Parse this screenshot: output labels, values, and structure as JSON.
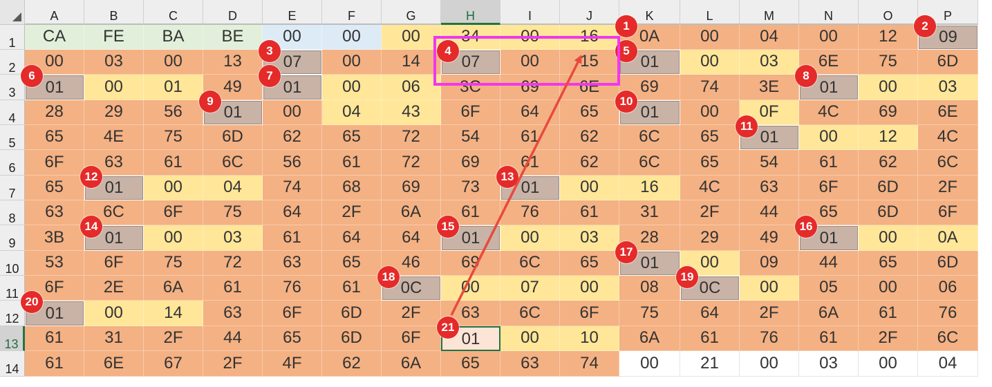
{
  "columns": [
    "A",
    "B",
    "C",
    "D",
    "E",
    "F",
    "G",
    "H",
    "I",
    "J",
    "K",
    "L",
    "M",
    "N",
    "O",
    "P"
  ],
  "rows": [
    "1",
    "2",
    "3",
    "4",
    "5",
    "6",
    "7",
    "8",
    "9",
    "10",
    "11",
    "12",
    "13",
    "14"
  ],
  "selected_column": "H",
  "selected_row": "13",
  "active_cell": "H13",
  "cells": [
    [
      "CA",
      "FE",
      "BA",
      "BE",
      "00",
      "00",
      "00",
      "34",
      "00",
      "16",
      "0A",
      "00",
      "04",
      "00",
      "12",
      "09"
    ],
    [
      "00",
      "03",
      "00",
      "13",
      "07",
      "00",
      "14",
      "07",
      "00",
      "15",
      "01",
      "00",
      "03",
      "6E",
      "75",
      "6D"
    ],
    [
      "01",
      "00",
      "01",
      "49",
      "01",
      "00",
      "06",
      "3C",
      "69",
      "6E",
      "69",
      "74",
      "3E",
      "01",
      "00",
      "03"
    ],
    [
      "28",
      "29",
      "56",
      "01",
      "00",
      "04",
      "43",
      "6F",
      "64",
      "65",
      "01",
      "00",
      "0F",
      "4C",
      "69",
      "6E"
    ],
    [
      "65",
      "4E",
      "75",
      "6D",
      "62",
      "65",
      "72",
      "54",
      "61",
      "62",
      "6C",
      "65",
      "01",
      "00",
      "12",
      "4C"
    ],
    [
      "6F",
      "63",
      "61",
      "6C",
      "56",
      "61",
      "72",
      "69",
      "61",
      "62",
      "6C",
      "65",
      "54",
      "61",
      "62",
      "6C"
    ],
    [
      "65",
      "01",
      "00",
      "04",
      "74",
      "68",
      "69",
      "73",
      "01",
      "00",
      "16",
      "4C",
      "63",
      "6F",
      "6D",
      "2F"
    ],
    [
      "63",
      "6C",
      "6F",
      "75",
      "64",
      "2F",
      "6A",
      "61",
      "76",
      "61",
      "31",
      "2F",
      "44",
      "65",
      "6D",
      "6F"
    ],
    [
      "3B",
      "01",
      "00",
      "03",
      "61",
      "64",
      "64",
      "01",
      "00",
      "03",
      "28",
      "29",
      "49",
      "01",
      "00",
      "0A"
    ],
    [
      "53",
      "6F",
      "75",
      "72",
      "63",
      "65",
      "46",
      "69",
      "6C",
      "65",
      "01",
      "00",
      "09",
      "44",
      "65",
      "6D"
    ],
    [
      "6F",
      "2E",
      "6A",
      "61",
      "76",
      "61",
      "0C",
      "00",
      "07",
      "00",
      "08",
      "0C",
      "00",
      "05",
      "00",
      "06"
    ],
    [
      "01",
      "00",
      "14",
      "63",
      "6F",
      "6D",
      "2F",
      "63",
      "6C",
      "6F",
      "75",
      "64",
      "2F",
      "6A",
      "61",
      "76"
    ],
    [
      "61",
      "31",
      "2F",
      "44",
      "65",
      "6D",
      "6F",
      "01",
      "00",
      "10",
      "6A",
      "61",
      "76",
      "61",
      "2F",
      "6C"
    ],
    [
      "61",
      "6E",
      "67",
      "2F",
      "4F",
      "62",
      "6A",
      "65",
      "63",
      "74",
      "00",
      "21",
      "00",
      "03",
      "00",
      "04"
    ]
  ],
  "fills": [
    "ggggbbyyyyoooooo",
    "oooooooooooyyooo",
    "oyyoyyyooooooyyy",
    "oooooyyoooooyooo",
    "ooooooooooooyyyo",
    "oooooooooooooooo",
    "oyyyooooyyyooooo",
    "oooooooooooooooo",
    "oyyyoooyyyoooyyy",
    "ooooooooooyyoooo",
    "oooooooyyyoyyooo",
    "oyyooooooooooooo",
    "ooooooooyyoooooo",
    "oooooooooowwwwww"
  ],
  "marked_cells": [
    "P1",
    "E2",
    "H2",
    "K2",
    "A3",
    "E3",
    "N3",
    "D4",
    "K4",
    "M5",
    "B7",
    "I7",
    "B9",
    "H9",
    "N9",
    "K10",
    "G11",
    "L11",
    "A12",
    "H13"
  ],
  "annotations": [
    {
      "n": "1",
      "cell": "K1"
    },
    {
      "n": "2",
      "cell": "P1"
    },
    {
      "n": "3",
      "cell": "E2"
    },
    {
      "n": "4",
      "cell": "H2"
    },
    {
      "n": "5",
      "cell": "K2"
    },
    {
      "n": "6",
      "cell": "A3"
    },
    {
      "n": "7",
      "cell": "E3"
    },
    {
      "n": "8",
      "cell": "N3"
    },
    {
      "n": "9",
      "cell": "D4"
    },
    {
      "n": "10",
      "cell": "K4"
    },
    {
      "n": "11",
      "cell": "M5"
    },
    {
      "n": "12",
      "cell": "B7"
    },
    {
      "n": "13",
      "cell": "I7"
    },
    {
      "n": "14",
      "cell": "B9"
    },
    {
      "n": "15",
      "cell": "H9"
    },
    {
      "n": "16",
      "cell": "N9"
    },
    {
      "n": "17",
      "cell": "K10"
    },
    {
      "n": "18",
      "cell": "G11"
    },
    {
      "n": "19",
      "cell": "L11"
    },
    {
      "n": "20",
      "cell": "A12"
    },
    {
      "n": "21",
      "cell": "H13"
    }
  ],
  "highlight": {
    "range": "H2:J3",
    "color": "#f037ef"
  },
  "arrow": {
    "from": "H13",
    "to": "J2",
    "color": "#e84a3c"
  },
  "colors": {
    "green": "#e2efda",
    "blue": "#ddebf7",
    "yellow": "#ffe699",
    "orange": "#f4b183",
    "white": "#ffffff",
    "marked": "#c8b3a6",
    "active": "#fce4d6",
    "badge": "#e52a2a"
  },
  "icons": {
    "corner": "select-all-triangle-icon"
  }
}
